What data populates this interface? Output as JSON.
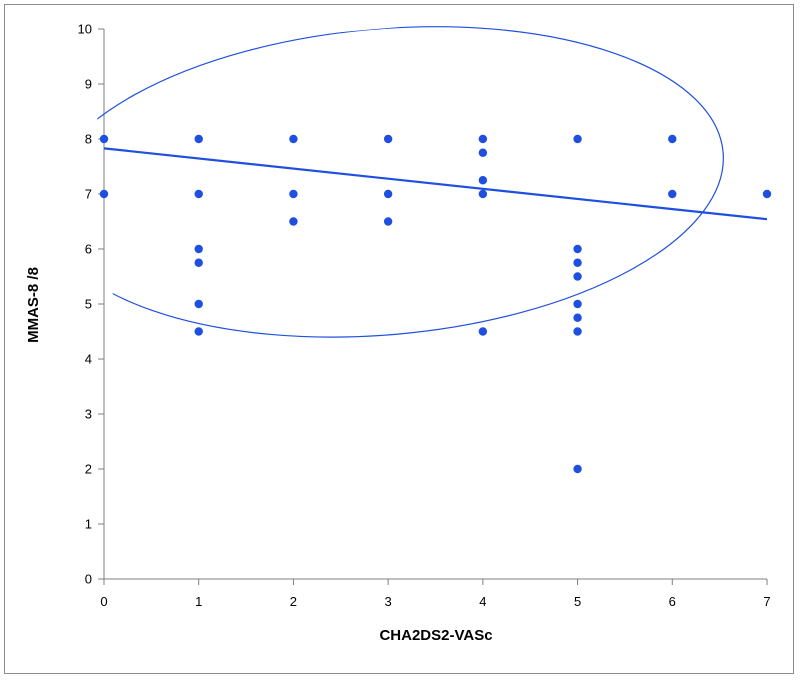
{
  "chart_data": {
    "type": "scatter",
    "title": "",
    "xlabel": "CHA2DS2-VASc",
    "ylabel": "MMAS-8 /8",
    "xlim": [
      0,
      7
    ],
    "ylim": [
      0,
      10
    ],
    "x_ticks": [
      0,
      1,
      2,
      3,
      4,
      5,
      6,
      7
    ],
    "y_ticks": [
      0,
      1,
      2,
      3,
      4,
      5,
      6,
      7,
      8,
      9,
      10
    ],
    "grid": false,
    "legend": "none",
    "point_color": "#1f4fe0",
    "line_color": "#1f4fe0",
    "points": [
      {
        "x": 0,
        "y": 8
      },
      {
        "x": 0,
        "y": 7
      },
      {
        "x": 1,
        "y": 8
      },
      {
        "x": 1,
        "y": 7
      },
      {
        "x": 1,
        "y": 6
      },
      {
        "x": 1,
        "y": 5.75
      },
      {
        "x": 1,
        "y": 5
      },
      {
        "x": 1,
        "y": 4.5
      },
      {
        "x": 2,
        "y": 8
      },
      {
        "x": 2,
        "y": 7
      },
      {
        "x": 2,
        "y": 6.5
      },
      {
        "x": 3,
        "y": 8
      },
      {
        "x": 3,
        "y": 7
      },
      {
        "x": 3,
        "y": 6.5
      },
      {
        "x": 4,
        "y": 8
      },
      {
        "x": 4,
        "y": 7.75
      },
      {
        "x": 4,
        "y": 7.25
      },
      {
        "x": 4,
        "y": 7
      },
      {
        "x": 4,
        "y": 4.5
      },
      {
        "x": 5,
        "y": 8
      },
      {
        "x": 5,
        "y": 6
      },
      {
        "x": 5,
        "y": 5.75
      },
      {
        "x": 5,
        "y": 5.5
      },
      {
        "x": 5,
        "y": 5
      },
      {
        "x": 5,
        "y": 4.75
      },
      {
        "x": 5,
        "y": 4.5
      },
      {
        "x": 5,
        "y": 2
      },
      {
        "x": 6,
        "y": 8
      },
      {
        "x": 6,
        "y": 7
      },
      {
        "x": 7,
        "y": 7
      }
    ],
    "trendline": {
      "type": "linear",
      "intercept": 7.83,
      "slope": -0.184
    },
    "ellipse": {
      "center": [
        2.95,
        7.22
      ],
      "semi_axis_x": 3.6,
      "semi_axis_y": 2.78,
      "rotation_deg": -5
    }
  }
}
